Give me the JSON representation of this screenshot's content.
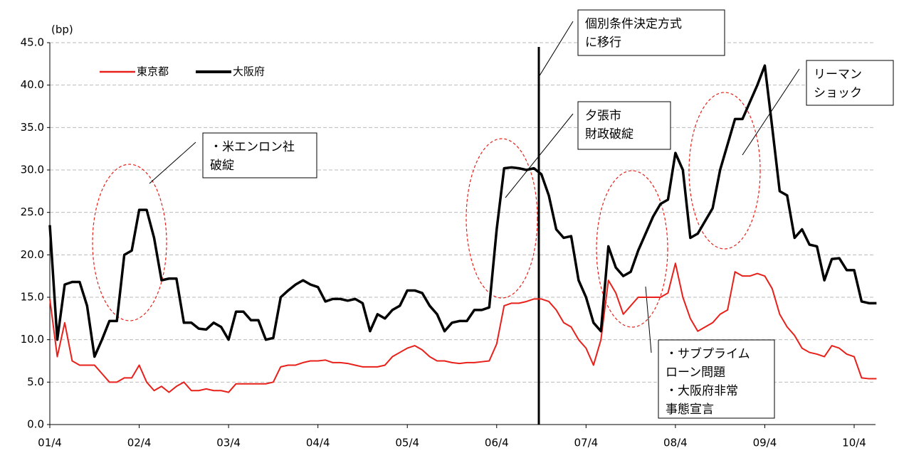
{
  "chart_data": {
    "type": "line",
    "y_unit": "(bp)",
    "categories": [
      "01/4",
      null,
      null,
      null,
      null,
      null,
      null,
      null,
      null,
      null,
      null,
      null,
      "02/4",
      null,
      null,
      null,
      null,
      null,
      null,
      null,
      null,
      null,
      null,
      null,
      "03/4",
      null,
      null,
      null,
      null,
      null,
      null,
      null,
      null,
      null,
      null,
      null,
      "04/4",
      null,
      null,
      null,
      null,
      null,
      null,
      null,
      null,
      null,
      null,
      null,
      "05/4",
      null,
      null,
      null,
      null,
      null,
      null,
      null,
      null,
      null,
      null,
      null,
      "06/4",
      null,
      null,
      null,
      null,
      null,
      null,
      null,
      null,
      null,
      null,
      null,
      "07/4",
      null,
      null,
      null,
      null,
      null,
      null,
      null,
      null,
      null,
      null,
      null,
      "08/4",
      null,
      null,
      null,
      null,
      null,
      null,
      null,
      null,
      null,
      null,
      null,
      "09/4",
      null,
      null,
      null,
      null,
      null,
      null,
      null,
      null,
      null,
      null,
      null,
      "10/4",
      null,
      null,
      null
    ],
    "series": [
      {
        "name": "東京都",
        "color": "#e8201a",
        "values": [
          14.8,
          8,
          12,
          7.5,
          7,
          7,
          7,
          6,
          5,
          5,
          5.5,
          5.5,
          7,
          5,
          4,
          4.5,
          3.8,
          4.5,
          5,
          4,
          4,
          4.2,
          4,
          4,
          3.8,
          4.8,
          4.8,
          4.8,
          4.8,
          4.8,
          5,
          6.8,
          7,
          7,
          7.3,
          7.5,
          7.5,
          7.6,
          7.3,
          7.3,
          7.2,
          7,
          6.8,
          6.8,
          6.8,
          7,
          8,
          8.5,
          9,
          9.3,
          8.8,
          8,
          7.5,
          7.5,
          7.3,
          7.2,
          7.3,
          7.3,
          7.4,
          7.5,
          9.5,
          14,
          14.3,
          14.3,
          14.5,
          14.8,
          14.8,
          14.5,
          13.5,
          12,
          11.5,
          10,
          9,
          7,
          10,
          17,
          15.5,
          13,
          14,
          15,
          15,
          15,
          15,
          15.5,
          19,
          15,
          12.5,
          11,
          11.5,
          12,
          13,
          13.5,
          18,
          17.5,
          17.5,
          17.8,
          17.5,
          16,
          13,
          11.5,
          10.5,
          9,
          8.5,
          8.3,
          8,
          9.3,
          9,
          8.3,
          8,
          5.5,
          5.4,
          5.4
        ]
      },
      {
        "name": "大阪府",
        "color": "#000000",
        "values": [
          23.5,
          10,
          16.5,
          16.8,
          16.8,
          14,
          8,
          10,
          12.2,
          12.2,
          20,
          20.5,
          25.3,
          25.3,
          22,
          17,
          17.2,
          17.2,
          12,
          12,
          11.3,
          11.2,
          12,
          11.5,
          10,
          13.3,
          13.3,
          12.3,
          12.3,
          10,
          10.2,
          15,
          15.8,
          16.5,
          17,
          16.5,
          16.2,
          14.5,
          14.8,
          14.8,
          14.6,
          14.8,
          14.3,
          11,
          13,
          12.5,
          13.5,
          14,
          15.8,
          15.8,
          15.5,
          14,
          13,
          11,
          12,
          12.2,
          12.2,
          13.5,
          13.5,
          13.8,
          23,
          30.2,
          30.3,
          30.2,
          30,
          30.2,
          29.5,
          27,
          23,
          22,
          22.2,
          17,
          15,
          12,
          11,
          21,
          18.5,
          17.5,
          18,
          20.5,
          22.5,
          24.5,
          26,
          26.5,
          32,
          30,
          22,
          22.5,
          24,
          25.5,
          30,
          33,
          36,
          36,
          38,
          40,
          42.3,
          35,
          27.5,
          27,
          22,
          23,
          21.2,
          21,
          17,
          19.5,
          19.6,
          18.2,
          18.2,
          14.5,
          14.3,
          14.3
        ]
      }
    ],
    "ylim": [
      0,
      45
    ],
    "yticks": [
      {
        "value": 0,
        "label": "0.0"
      },
      {
        "value": 5,
        "label": "5.0"
      },
      {
        "value": 10,
        "label": "10.0"
      },
      {
        "value": 15,
        "label": "15.0"
      },
      {
        "value": 20,
        "label": "20.0"
      },
      {
        "value": 25,
        "label": "25.0"
      },
      {
        "value": 30,
        "label": "30.0"
      },
      {
        "value": 35,
        "label": "35.0"
      },
      {
        "value": 40,
        "label": "40.0"
      },
      {
        "value": 45,
        "label": "45.0"
      }
    ],
    "grid": true,
    "annotations": [
      {
        "lines": [
          "・米エンロン社",
          " 破綻"
        ]
      },
      {
        "lines": [
          "個別条件決定方式",
          "に移行"
        ]
      },
      {
        "lines": [
          "夕張市",
          "財政破綻"
        ]
      },
      {
        "lines": [
          "リーマン",
          "ショック"
        ]
      },
      {
        "lines": [
          "・サブプライム",
          " ローン問題",
          "・大阪府非常",
          " 事態宣言"
        ]
      }
    ]
  }
}
